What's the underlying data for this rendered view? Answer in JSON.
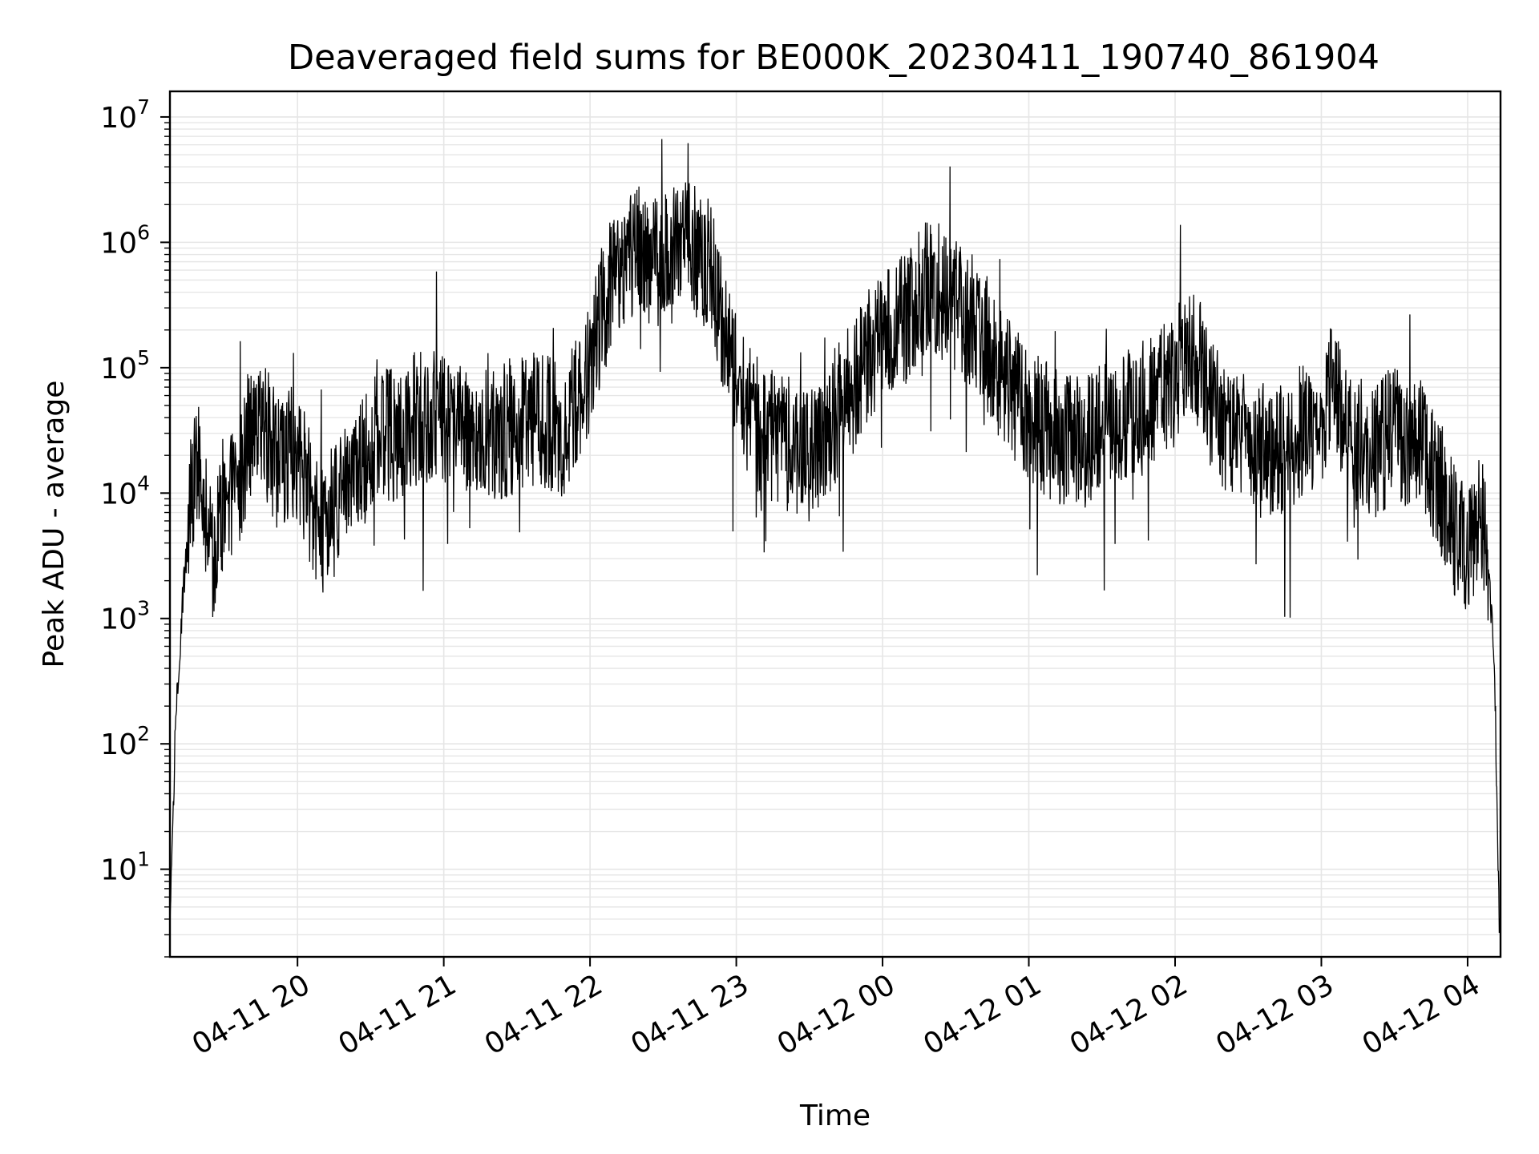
{
  "chart_data": {
    "type": "line",
    "title": "Deaveraged field sums for BE000K_20230411_190740_861904",
    "xlabel": "Time",
    "ylabel": "Peak ADU - average",
    "yscale": "log",
    "ylim": [
      2,
      16000000
    ],
    "xlim": [
      "2023-04-11 19:07:40",
      "2023-04-12 04:13:30"
    ],
    "grid": true,
    "line_color": "#000000",
    "grid_color": "#e6e6e6",
    "x_ticks": [
      {
        "value": "2023-04-11 20:00",
        "label": "04-11 20"
      },
      {
        "value": "2023-04-11 21:00",
        "label": "04-11 21"
      },
      {
        "value": "2023-04-11 22:00",
        "label": "04-11 22"
      },
      {
        "value": "2023-04-11 23:00",
        "label": "04-11 23"
      },
      {
        "value": "2023-04-12 00:00",
        "label": "04-12 00"
      },
      {
        "value": "2023-04-12 01:00",
        "label": "04-12 01"
      },
      {
        "value": "2023-04-12 02:00",
        "label": "04-12 02"
      },
      {
        "value": "2023-04-12 03:00",
        "label": "04-12 03"
      },
      {
        "value": "2023-04-12 04:00",
        "label": "04-12 04"
      }
    ],
    "y_ticks": [
      {
        "value": 10,
        "base": "10",
        "exp": "1"
      },
      {
        "value": 100,
        "base": "10",
        "exp": "2"
      },
      {
        "value": 1000,
        "base": "10",
        "exp": "3"
      },
      {
        "value": 10000,
        "base": "10",
        "exp": "4"
      },
      {
        "value": 100000,
        "base": "10",
        "exp": "5"
      },
      {
        "value": 1000000,
        "base": "10",
        "exp": "6"
      },
      {
        "value": 10000000,
        "base": "10",
        "exp": "7"
      }
    ],
    "series": [
      {
        "x": [
          "2023-04-11 19:07:40",
          "2023-04-11 19:10",
          "2023-04-11 19:13",
          "2023-04-11 19:16",
          "2023-04-11 19:20",
          "2023-04-11 19:25",
          "2023-04-11 19:30",
          "2023-04-11 19:35",
          "2023-04-11 19:40",
          "2023-04-11 19:45",
          "2023-04-11 19:50",
          "2023-04-11 20:00",
          "2023-04-11 20:10",
          "2023-04-11 20:20",
          "2023-04-11 20:30",
          "2023-04-11 20:40",
          "2023-04-11 20:50",
          "2023-04-11 21:00",
          "2023-04-11 21:10",
          "2023-04-11 21:20",
          "2023-04-11 21:30",
          "2023-04-11 21:40",
          "2023-04-11 21:50",
          "2023-04-11 22:00",
          "2023-04-11 22:05",
          "2023-04-11 22:10",
          "2023-04-11 22:20",
          "2023-04-11 22:30",
          "2023-04-11 22:40",
          "2023-04-11 22:50",
          "2023-04-11 22:55",
          "2023-04-11 23:00",
          "2023-04-11 23:10",
          "2023-04-11 23:20",
          "2023-04-11 23:30",
          "2023-04-11 23:40",
          "2023-04-11 23:50",
          "2023-04-12 00:00",
          "2023-04-12 00:10",
          "2023-04-12 00:20",
          "2023-04-12 00:30",
          "2023-04-12 00:40",
          "2023-04-12 00:50",
          "2023-04-12 01:00",
          "2023-04-12 01:10",
          "2023-04-12 01:20",
          "2023-04-12 01:30",
          "2023-04-12 01:40",
          "2023-04-12 01:50",
          "2023-04-12 02:00",
          "2023-04-12 02:05",
          "2023-04-12 02:10",
          "2023-04-12 02:20",
          "2023-04-12 02:30",
          "2023-04-12 02:40",
          "2023-04-12 02:50",
          "2023-04-12 03:00",
          "2023-04-12 03:05",
          "2023-04-12 03:10",
          "2023-04-12 03:20",
          "2023-04-12 03:30",
          "2023-04-12 03:40",
          "2023-04-12 03:50",
          "2023-04-12 03:55",
          "2023-04-12 04:00",
          "2023-04-12 04:05",
          "2023-04-12 04:08",
          "2023-04-12 04:11",
          "2023-04-12 04:13"
        ],
        "y": [
          3,
          150,
          1500,
          8000,
          20000,
          3000,
          10000,
          8000,
          30000,
          40000,
          20000,
          20000,
          5000,
          10000,
          25000,
          30000,
          40000,
          40000,
          35000,
          30000,
          35000,
          40000,
          30000,
          100000,
          300000,
          500000,
          800000,
          700000,
          1000000,
          600000,
          200000,
          80000,
          30000,
          25000,
          20000,
          40000,
          80000,
          200000,
          250000,
          500000,
          300000,
          200000,
          80000,
          40000,
          30000,
          25000,
          30000,
          40000,
          50000,
          80000,
          150000,
          100000,
          30000,
          25000,
          20000,
          30000,
          40000,
          80000,
          30000,
          20000,
          30000,
          25000,
          10000,
          5000,
          3000,
          8000,
          3000,
          500,
          3
        ]
      }
    ]
  }
}
